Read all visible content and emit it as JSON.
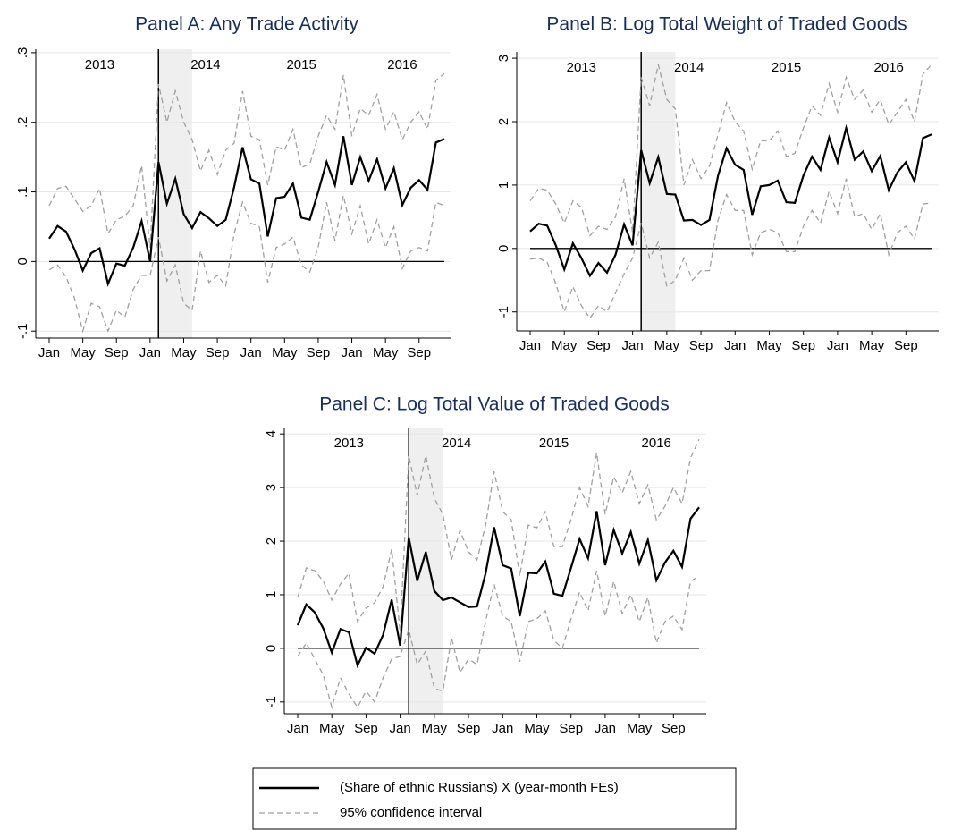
{
  "chart_data": [
    {
      "type": "line",
      "title": "Panel A: Any Trade Activity",
      "categories": [
        "Jan",
        null,
        null,
        null,
        "May",
        null,
        null,
        null,
        "Sep",
        null,
        null,
        null,
        "Jan",
        null,
        null,
        null,
        "May",
        null,
        null,
        null,
        "Sep",
        null,
        null,
        null,
        "Jan",
        null,
        null,
        null,
        "May",
        null,
        null,
        null,
        "Sep",
        null,
        null,
        null,
        "Jan",
        null,
        null,
        null,
        "May",
        null,
        null,
        null,
        "Sep",
        null,
        null,
        null
      ],
      "annotations": [
        "2013",
        "2014",
        "2015",
        "2016"
      ],
      "ylim": [
        -0.11,
        0.305
      ],
      "yticks": [
        {
          "value": -0.1,
          "label": "-.1"
        },
        0,
        {
          "value": 0.1,
          "label": ".1"
        },
        {
          "value": 0.2,
          "label": ".2"
        },
        {
          "value": 0.3,
          "label": ".3"
        }
      ],
      "grid": true,
      "series": [
        {
          "color": "#000000",
          "style": "solid",
          "values": [
            0.033,
            0.051,
            0.043,
            0.018,
            -0.013,
            0.012,
            0.019,
            -0.032,
            -0.003,
            -0.006,
            0.02,
            0.058,
            0.0,
            0.143,
            0.083,
            0.119,
            0.068,
            0.048,
            0.071,
            0.062,
            0.051,
            0.06,
            0.107,
            0.164,
            0.118,
            0.112,
            0.036,
            0.091,
            0.093,
            0.112,
            0.063,
            0.06,
            0.1,
            0.143,
            0.11,
            0.18,
            0.11,
            0.15,
            0.116,
            0.147,
            0.105,
            0.134,
            0.081,
            0.106,
            0.117,
            0.103,
            0.171,
            0.176
          ]
        },
        {
          "color": "#a0a0a0",
          "style": "dashed",
          "values": [
            0.08,
            0.105,
            0.108,
            0.09,
            0.072,
            0.08,
            0.105,
            0.04,
            0.06,
            0.065,
            0.08,
            0.138,
            0.02,
            0.255,
            0.2,
            0.245,
            0.2,
            0.175,
            0.13,
            0.16,
            0.125,
            0.16,
            0.17,
            0.245,
            0.18,
            0.175,
            0.11,
            0.165,
            0.16,
            0.19,
            0.135,
            0.14,
            0.18,
            0.21,
            0.19,
            0.268,
            0.18,
            0.22,
            0.21,
            0.24,
            0.19,
            0.215,
            0.175,
            0.2,
            0.215,
            0.19,
            0.26,
            0.27
          ]
        },
        {
          "color": "#a0a0a0",
          "style": "dashed",
          "values": [
            -0.012,
            -0.005,
            -0.022,
            -0.052,
            -0.1,
            -0.06,
            -0.065,
            -0.1,
            -0.07,
            -0.08,
            -0.04,
            -0.02,
            -0.02,
            0.035,
            -0.028,
            -0.005,
            -0.06,
            -0.07,
            0.015,
            -0.03,
            -0.02,
            -0.035,
            0.04,
            0.085,
            0.055,
            0.05,
            -0.03,
            0.02,
            0.025,
            0.035,
            -0.005,
            -0.015,
            0.02,
            0.085,
            0.03,
            0.095,
            0.04,
            0.08,
            0.025,
            0.06,
            0.02,
            0.05,
            -0.01,
            0.015,
            0.02,
            0.015,
            0.085,
            0.08
          ]
        }
      ]
    },
    {
      "type": "line",
      "title": "Panel B: Log Total Weight of Traded Goods",
      "categories": [
        "Jan",
        null,
        null,
        null,
        "May",
        null,
        null,
        null,
        "Sep",
        null,
        null,
        null,
        "Jan",
        null,
        null,
        null,
        "May",
        null,
        null,
        null,
        "Sep",
        null,
        null,
        null,
        "Jan",
        null,
        null,
        null,
        "May",
        null,
        null,
        null,
        "Sep",
        null,
        null,
        null,
        "Jan",
        null,
        null,
        null,
        "May",
        null,
        null,
        null,
        "Sep",
        null,
        null,
        null
      ],
      "annotations": [
        "2013",
        "2014",
        "2015",
        "2016"
      ],
      "ylim": [
        -1.3,
        3.1
      ],
      "yticks": [
        -1,
        0,
        1,
        2,
        3
      ],
      "grid": true,
      "series": [
        {
          "color": "#000000",
          "style": "solid",
          "values": [
            0.27,
            0.39,
            0.36,
            0.05,
            -0.33,
            0.08,
            -0.15,
            -0.43,
            -0.23,
            -0.38,
            -0.1,
            0.38,
            0.05,
            1.55,
            1.03,
            1.44,
            0.86,
            0.85,
            0.44,
            0.45,
            0.37,
            0.45,
            1.15,
            1.58,
            1.32,
            1.24,
            0.53,
            0.98,
            1.0,
            1.07,
            0.73,
            0.72,
            1.15,
            1.45,
            1.24,
            1.75,
            1.36,
            1.9,
            1.4,
            1.53,
            1.22,
            1.46,
            0.92,
            1.2,
            1.36,
            1.06,
            1.74,
            1.8
          ]
        },
        {
          "color": "#a0a0a0",
          "style": "dashed",
          "values": [
            0.75,
            0.95,
            0.92,
            0.7,
            0.4,
            0.75,
            0.65,
            0.2,
            0.35,
            0.3,
            0.5,
            1.1,
            0.25,
            2.7,
            2.25,
            2.9,
            2.35,
            2.2,
            1.0,
            1.4,
            1.1,
            1.3,
            1.8,
            2.3,
            2.0,
            1.85,
            1.25,
            1.7,
            1.7,
            1.85,
            1.45,
            1.5,
            1.9,
            2.25,
            2.1,
            2.6,
            2.15,
            2.7,
            2.35,
            2.5,
            2.15,
            2.35,
            1.95,
            2.15,
            2.35,
            2.0,
            2.75,
            2.9
          ]
        },
        {
          "color": "#a0a0a0",
          "style": "dashed",
          "values": [
            -0.17,
            -0.15,
            -0.22,
            -0.55,
            -1.0,
            -0.6,
            -0.9,
            -1.1,
            -0.9,
            -1.0,
            -0.7,
            -0.4,
            -0.15,
            0.4,
            -0.15,
            0.1,
            -0.6,
            -0.5,
            -0.15,
            -0.5,
            -0.35,
            -0.35,
            0.45,
            0.85,
            0.6,
            0.6,
            -0.1,
            0.25,
            0.3,
            0.25,
            -0.05,
            -0.05,
            0.35,
            0.6,
            0.4,
            0.9,
            0.55,
            1.1,
            0.5,
            0.55,
            0.3,
            0.55,
            -0.1,
            0.25,
            0.35,
            0.15,
            0.7,
            0.72
          ]
        }
      ]
    },
    {
      "type": "line",
      "title": "Panel C: Log Total Value of Traded Goods",
      "categories": [
        "Jan",
        null,
        null,
        null,
        "May",
        null,
        null,
        null,
        "Sep",
        null,
        null,
        null,
        "Jan",
        null,
        null,
        null,
        "May",
        null,
        null,
        null,
        "Sep",
        null,
        null,
        null,
        "Jan",
        null,
        null,
        null,
        "May",
        null,
        null,
        null,
        "Sep",
        null,
        null,
        null,
        "Jan",
        null,
        null,
        null,
        "May",
        null,
        null,
        null,
        "Sep",
        null,
        null,
        null
      ],
      "annotations": [
        "2013",
        "2014",
        "2015",
        "2016"
      ],
      "ylim": [
        -1.22,
        4.12
      ],
      "yticks": [
        -1,
        0,
        1,
        2,
        3,
        4
      ],
      "grid": true,
      "series": [
        {
          "color": "#000000",
          "style": "solid",
          "values": [
            0.43,
            0.82,
            0.67,
            0.37,
            -0.08,
            0.36,
            0.3,
            -0.32,
            0.01,
            -0.1,
            0.25,
            0.91,
            0.05,
            2.07,
            1.26,
            1.8,
            1.07,
            0.9,
            0.95,
            0.86,
            0.77,
            0.78,
            1.4,
            2.26,
            1.55,
            1.49,
            0.6,
            1.41,
            1.4,
            1.62,
            1.02,
            0.98,
            1.5,
            2.04,
            1.68,
            2.56,
            1.55,
            2.21,
            1.77,
            2.17,
            1.58,
            2.02,
            1.27,
            1.6,
            1.82,
            1.52,
            2.42,
            2.63
          ]
        },
        {
          "color": "#a0a0a0",
          "style": "dashed",
          "values": [
            0.95,
            1.5,
            1.45,
            1.25,
            0.9,
            1.2,
            1.4,
            0.5,
            0.75,
            0.85,
            1.15,
            1.85,
            0.3,
            3.6,
            2.85,
            3.6,
            2.8,
            2.5,
            1.65,
            2.2,
            1.8,
            1.65,
            2.3,
            3.3,
            2.55,
            2.4,
            1.35,
            2.3,
            2.25,
            2.55,
            1.9,
            1.9,
            2.4,
            3.0,
            2.65,
            3.65,
            2.5,
            3.2,
            2.9,
            3.3,
            2.7,
            3.05,
            2.4,
            2.65,
            3.0,
            2.7,
            3.55,
            3.9
          ]
        },
        {
          "color": "#a0a0a0",
          "style": "dashed",
          "values": [
            -0.15,
            0.1,
            -0.2,
            -0.5,
            -1.1,
            -0.55,
            -0.85,
            -1.1,
            -0.8,
            -1.0,
            -0.55,
            -0.2,
            -0.15,
            0.35,
            -0.3,
            -0.05,
            -0.75,
            -0.8,
            0.2,
            -0.45,
            -0.2,
            -0.3,
            0.5,
            1.2,
            0.6,
            0.5,
            -0.25,
            0.5,
            0.55,
            0.7,
            0.15,
            0.0,
            0.55,
            1.05,
            0.7,
            1.45,
            0.6,
            1.25,
            0.65,
            1.0,
            0.5,
            0.95,
            0.1,
            0.5,
            0.6,
            0.35,
            1.25,
            1.35
          ]
        }
      ]
    }
  ],
  "legend": {
    "entries": [
      {
        "label": "(Share of ethnic Russians) X (year-month FEs)",
        "color": "#000000",
        "style": "solid"
      },
      {
        "label": "95% confidence interval",
        "color": "#a0a0a0",
        "style": "dashed"
      }
    ]
  }
}
